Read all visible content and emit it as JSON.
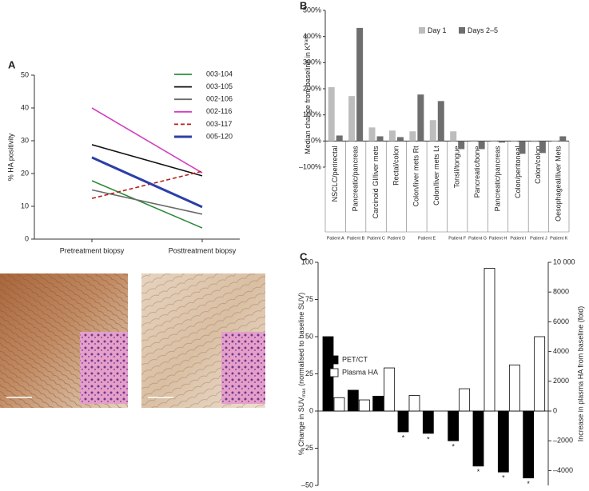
{
  "chart_data": [
    {
      "panel": "A",
      "type": "line",
      "ylabel": "% HA positivity",
      "categories": [
        "Pretreatment biopsy",
        "Posttreatment biopsy"
      ],
      "ylim": [
        0,
        50
      ],
      "yticks": [
        0,
        10,
        20,
        30,
        40,
        50
      ],
      "series": [
        {
          "name": "003-104",
          "color": "#2e8b3a",
          "values": [
            17.8,
            3.4
          ]
        },
        {
          "name": "003-105",
          "color": "#111111",
          "values": [
            28.8,
            19.3
          ]
        },
        {
          "name": "002-106",
          "color": "#6b6b6b",
          "values": [
            15,
            7.6
          ]
        },
        {
          "name": "002-116",
          "color": "#d23fc2",
          "values": [
            40,
            20.2
          ]
        },
        {
          "name": "003-117",
          "color": "#b5221c",
          "values": [
            12.4,
            20.7
          ],
          "dashed": true
        },
        {
          "name": "005-120",
          "color": "#2c3fa8",
          "values": [
            24.9,
            9.8
          ],
          "thick": true
        }
      ]
    },
    {
      "panel": "B",
      "type": "bar",
      "ylabel": [
        "Median change from baseline in K",
        "trans"
      ],
      "categories": [
        "NSCLC/perirectal",
        "Pancreatic/pancreas",
        "Carcinoid GI/liver mets",
        "Rectal/colon",
        "Colon/liver mets Rt",
        "Colon/liver mets Lt",
        "Tonsil/tongue",
        "Pancreatic/bone",
        "Pancreatic/pancreas",
        "Colon/peritoneal",
        "Colon/colon",
        "Oesophageal/liver Mets"
      ],
      "patients": [
        "Patient A",
        "Patient B",
        "Patient C",
        "Patient D",
        "Patient E",
        null,
        "Patient F",
        "Patient G",
        "Patient H",
        "Patient I",
        "Patient J",
        "Patient K"
      ],
      "ylim": [
        -100,
        500
      ],
      "yticks": [
        {
          "value": -100,
          "label": "–100%"
        },
        {
          "value": 0,
          "label": "0%"
        },
        {
          "value": 100,
          "label": "100%"
        },
        {
          "value": 200,
          "label": "200%"
        },
        {
          "value": 300,
          "label": "300%"
        },
        {
          "value": 400,
          "label": "400%"
        },
        {
          "value": 500,
          "label": "500%"
        }
      ],
      "series": [
        {
          "name": "Day 1",
          "color": "#bdbdbd",
          "values": [
            206,
            172,
            52,
            40,
            37,
            80,
            37,
            3,
            2,
            -3,
            -4,
            -2
          ]
        },
        {
          "name": "Days 2–5",
          "color": "#6e6e6e",
          "values": [
            21,
            433,
            18,
            15,
            178,
            153,
            -31,
            -31,
            -6,
            -49,
            -46,
            18
          ]
        }
      ]
    },
    {
      "panel": "C",
      "type": "bar",
      "ylabel": [
        "% Change in SUV",
        "max",
        " (normalised to baseline SUV)"
      ],
      "y2label": "Increase in plasma HA from baseline (fold)",
      "ylim": [
        -50,
        100
      ],
      "yticks": [
        {
          "value": -50,
          "label": "–50"
        },
        {
          "value": -25,
          "label": "–25"
        },
        0,
        25,
        50,
        75,
        100
      ],
      "y2lim": [
        -5000,
        10000
      ],
      "y2ticks": [
        {
          "value": -4000,
          "label": "–4000"
        },
        {
          "value": -2000,
          "label": "–2000"
        },
        0,
        2000,
        4000,
        6000,
        8000,
        {
          "value": 10000,
          "label": "10 000"
        }
      ],
      "series": [
        {
          "name": "PET/CT",
          "color": "#000000",
          "values": [
            50,
            14,
            10,
            -14,
            -15,
            -20,
            -37,
            -41,
            -45
          ]
        },
        {
          "name": "Plasma HA",
          "color": "#ffffff",
          "axis": "y2",
          "values": [
            900,
            750,
            2900,
            1050,
            null,
            1500,
            9600,
            3100,
            5000
          ]
        }
      ],
      "annotations": [
        null,
        null,
        null,
        "*",
        "*",
        "*",
        "*",
        "*",
        "*"
      ]
    }
  ]
}
